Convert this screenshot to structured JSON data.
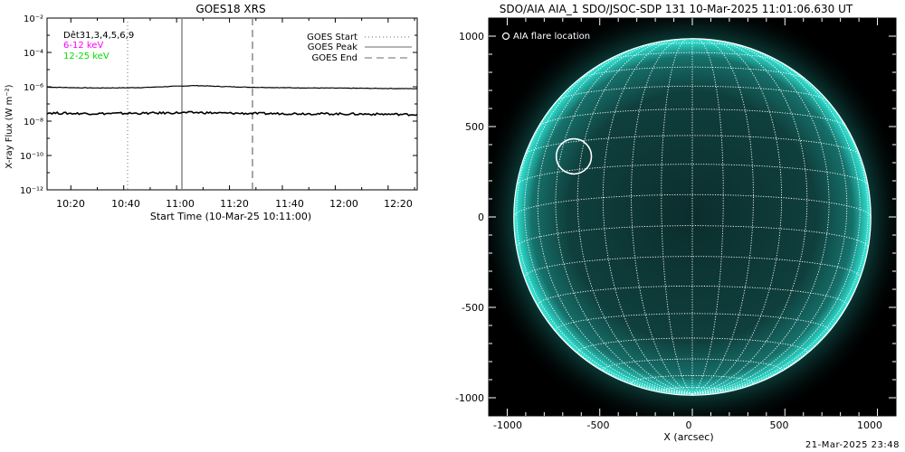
{
  "footer": {
    "timestamp": "21-Mar-2025 23:48"
  },
  "chart_data": [
    {
      "type": "line",
      "title": "GOES18 XRS",
      "xlabel": "Start Time (10-Mar-25 10:11:00)",
      "ylabel": "X-ray Flux (W m⁻²)",
      "yscale": "log",
      "ylim_exponent": [
        -12,
        -2
      ],
      "ytick_exponents": [
        -2,
        -4,
        -6,
        -8,
        -10,
        -12
      ],
      "ytick_labels": [
        "10⁻²",
        "10⁻⁴",
        "10⁻⁶",
        "10⁻⁸",
        "10⁻¹⁰",
        "10⁻¹²"
      ],
      "xlim": [
        "10:11",
        "12:31"
      ],
      "xtick_labels": [
        "10:20",
        "10:40",
        "11:00",
        "11:20",
        "11:40",
        "12:00",
        "12:20"
      ],
      "annotations": {
        "detectors": "Dêt31,3,4,5,6,9"
      },
      "legend_position": "top-right",
      "legend": [
        {
          "label": "GOES Start",
          "style": "dotted"
        },
        {
          "label": "GOES Peak",
          "style": "solid"
        },
        {
          "label": "GOES End",
          "style": "dashed"
        }
      ],
      "energy_labels": [
        {
          "label": "6-12 keV",
          "color": "#ff00ff"
        },
        {
          "label": "12-25 keV",
          "color": "#00dd00"
        }
      ],
      "markers": {
        "start": "10:41",
        "peak": "11:01",
        "end": "11:27"
      },
      "series": [
        {
          "name": "long channel",
          "log10_values": [
            -6.02,
            -6.05,
            -6.07,
            -6.06,
            -6.04,
            -5.98,
            -5.93,
            -5.98,
            -6.02,
            -6.04,
            -6.06,
            -6.07,
            -6.08,
            -6.09,
            -6.1,
            -6.11
          ]
        },
        {
          "name": "short channel",
          "log10_values": [
            -7.52,
            -7.55,
            -7.56,
            -7.55,
            -7.54,
            -7.52,
            -7.5,
            -7.53,
            -7.55,
            -7.56,
            -7.56,
            -7.57,
            -7.58,
            -7.59,
            -7.6,
            -7.62
          ]
        }
      ]
    },
    {
      "type": "scatter",
      "title": "SDO/AIA AIA_1 SDO/JSOC-SDP 131 10-Mar-2025 11:01:06.630 UT",
      "xlabel": "X (arcsec)",
      "ylabel": "",
      "xlim": [
        -1100,
        1100
      ],
      "ylim": [
        -1100,
        1100
      ],
      "xtick_labels": [
        "-1000",
        "-500",
        "0",
        "500",
        "1000"
      ],
      "ytick_labels": [
        "1000",
        "500",
        "0",
        "-500",
        "-1000"
      ],
      "legend_position": "top-left",
      "legend": [
        {
          "label": "AIA flare location",
          "symbol": "circle"
        }
      ],
      "flare_location": {
        "x": -640,
        "y": 335,
        "radius": 95
      },
      "solar_radius_arcsec": 975,
      "grid": true,
      "colors": {
        "disk": "#0f3d3b",
        "limb": "#2ad6c8",
        "background": "#000000"
      }
    }
  ]
}
